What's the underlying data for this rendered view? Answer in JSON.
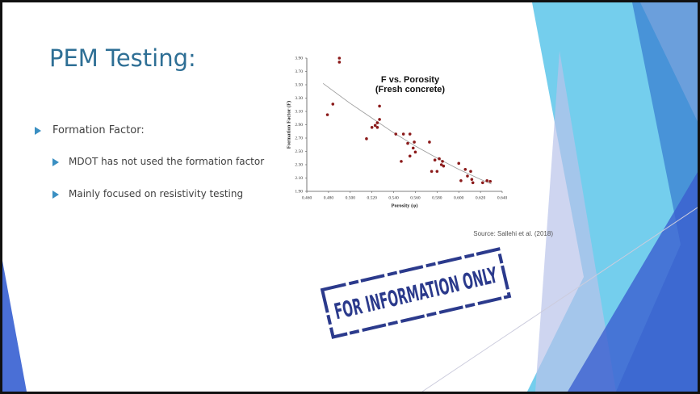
{
  "slide": {
    "title": "PEM Testing:",
    "bullet": "Formation Factor:",
    "sub_bullets": [
      "MDOT has not used the formation factor",
      "Mainly focused on resistivity testing"
    ],
    "source": "Source: Sallehi et al. (2018)",
    "stamp": "FOR INFORMATION ONLY"
  },
  "chart_data": {
    "type": "scatter",
    "title": [
      "F vs. Porosity",
      "(Fresh concrete)"
    ],
    "x_label": "Porosity (φ)",
    "y_label": "Formation Factor (F)",
    "color": "#8b1a1a",
    "series": [
      {
        "x": [
          0.479,
          0.484,
          0.49,
          0.49,
          0.515,
          0.52,
          0.523,
          0.525,
          0.527,
          0.527,
          0.525,
          0.542,
          0.547,
          0.549,
          0.553,
          0.555,
          0.555,
          0.558,
          0.559,
          0.56,
          0.573,
          0.575,
          0.578,
          0.58,
          0.582,
          0.584,
          0.585,
          0.586,
          0.6,
          0.602,
          0.606,
          0.608,
          0.611,
          0.612,
          0.613,
          0.622,
          0.626,
          0.629
        ],
        "values": [
          3.05,
          3.21,
          3.9,
          3.84,
          2.69,
          2.86,
          2.89,
          2.93,
          2.98,
          3.18,
          2.86,
          2.76,
          2.35,
          2.76,
          2.62,
          2.76,
          2.43,
          2.55,
          2.64,
          2.49,
          2.64,
          2.2,
          2.37,
          2.2,
          2.39,
          2.3,
          2.35,
          2.28,
          2.32,
          2.06,
          2.23,
          2.13,
          2.2,
          2.08,
          2.03,
          2.03,
          2.06,
          2.05
        ]
      }
    ],
    "trendline": {
      "x": [
        0.475,
        0.5,
        0.52,
        0.54,
        0.56,
        0.58,
        0.6,
        0.62,
        0.63
      ],
      "values": [
        3.52,
        3.22,
        3.0,
        2.78,
        2.58,
        2.4,
        2.23,
        2.08,
        2.01
      ]
    },
    "xlim": [
      0.46,
      0.64
    ],
    "ylim": [
      1.9,
      3.9
    ],
    "xticks": [
      {
        "value": 0.46,
        "label": "0.460"
      },
      {
        "value": 0.48,
        "label": "0.480"
      },
      {
        "value": 0.5,
        "label": "0.500"
      },
      {
        "value": 0.52,
        "label": "0.520"
      },
      {
        "value": 0.54,
        "label": "0.540"
      },
      {
        "value": 0.56,
        "label": "0.560"
      },
      {
        "value": 0.58,
        "label": "0.580"
      },
      {
        "value": 0.6,
        "label": "0.600"
      },
      {
        "value": 0.62,
        "label": "0.620"
      },
      {
        "value": 0.64,
        "label": "0.640"
      }
    ],
    "yticks": [
      {
        "value": 1.9,
        "label": "1.90"
      },
      {
        "value": 2.1,
        "label": "2.10"
      },
      {
        "value": 2.3,
        "label": "2.30"
      },
      {
        "value": 2.5,
        "label": "2.50"
      },
      {
        "value": 2.7,
        "label": "2.70"
      },
      {
        "value": 2.9,
        "label": "2.90"
      },
      {
        "value": 3.1,
        "label": "3.10"
      },
      {
        "value": 3.3,
        "label": "3.30"
      },
      {
        "value": 3.5,
        "label": "3.50"
      },
      {
        "value": 3.7,
        "label": "3.70"
      },
      {
        "value": 3.9,
        "label": "3.90"
      }
    ]
  }
}
